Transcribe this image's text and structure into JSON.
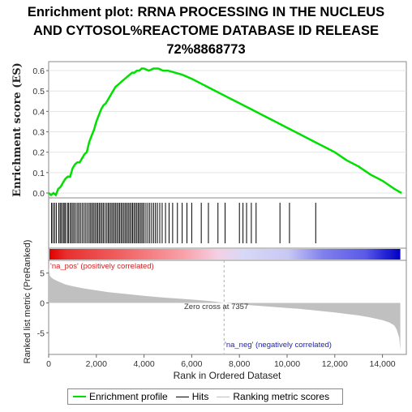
{
  "chart": {
    "title_lines": [
      "Enrichment plot: RRNA PROCESSING IN THE NUCLEUS",
      "AND CYTOSOL%REACTOME DATABASE ID RELEASE",
      "72%8868773"
    ],
    "legend": {
      "enrichment": "Enrichment profile",
      "hits": "Hits",
      "ranking": "Ranking metric scores"
    },
    "labels": {
      "pos": "'na_pos' (positively correlated)",
      "neg": "'na_neg' (negatively correlated)",
      "zero_cross": "Zero cross at 7357"
    }
  },
  "chart_data": {
    "type": "line",
    "title": "Enrichment plot: RRNA PROCESSING IN THE NUCLEUS AND CYTOSOL%REACTOME DATABASE ID RELEASE 72%8868773",
    "xlabel": "Rank in Ordered Dataset",
    "xlim": [
      0,
      15000
    ],
    "x_ticks": [
      0,
      2000,
      4000,
      6000,
      8000,
      10000,
      12000,
      14000
    ],
    "x_tick_labels": [
      "0",
      "2,000",
      "4,000",
      "6,000",
      "8,000",
      "10,000",
      "12,000",
      "14,000"
    ],
    "colors": {
      "enrichment": "#00e000",
      "hits": "#000000",
      "ranking": "#c0c0c0",
      "pos_label": "#d02020",
      "neg_label": "#2020c0"
    },
    "panels": {
      "enrichment": {
        "ylabel": "Enrichment score (ES)",
        "ylim": [
          -0.02,
          0.64
        ],
        "y_ticks": [
          0.0,
          0.1,
          0.2,
          0.3,
          0.4,
          0.5,
          0.6
        ],
        "y_tick_labels": [
          "0.0",
          "0.1",
          "0.2",
          "0.3",
          "0.4",
          "0.5",
          "0.6"
        ],
        "series": [
          {
            "name": "Enrichment profile",
            "x": [
              0,
              100,
              200,
              300,
              400,
              500,
              600,
              700,
              800,
              900,
              1000,
              1100,
              1200,
              1300,
              1400,
              1500,
              1600,
              1700,
              1800,
              1900,
              2000,
              2100,
              2200,
              2300,
              2400,
              2500,
              2600,
              2700,
              2800,
              2900,
              3000,
              3100,
              3200,
              3300,
              3400,
              3500,
              3600,
              3700,
              3800,
              3900,
              4000,
              4200,
              4400,
              4600,
              4800,
              5000,
              5300,
              5600,
              6000,
              6500,
              7000,
              7500,
              8000,
              8500,
              9000,
              9500,
              10000,
              10500,
              11000,
              11500,
              12000,
              12500,
              13000,
              13500,
              14000,
              14500,
              14800
            ],
            "y": [
              0.0,
              -0.01,
              0.0,
              -0.01,
              0.02,
              0.03,
              0.05,
              0.07,
              0.08,
              0.08,
              0.12,
              0.14,
              0.15,
              0.15,
              0.17,
              0.19,
              0.2,
              0.25,
              0.28,
              0.31,
              0.35,
              0.38,
              0.41,
              0.43,
              0.44,
              0.46,
              0.48,
              0.5,
              0.52,
              0.53,
              0.54,
              0.55,
              0.56,
              0.57,
              0.58,
              0.59,
              0.59,
              0.6,
              0.6,
              0.61,
              0.61,
              0.6,
              0.61,
              0.61,
              0.6,
              0.6,
              0.59,
              0.58,
              0.56,
              0.53,
              0.5,
              0.47,
              0.44,
              0.41,
              0.38,
              0.35,
              0.32,
              0.29,
              0.26,
              0.23,
              0.2,
              0.16,
              0.13,
              0.09,
              0.06,
              0.02,
              0.0
            ]
          }
        ]
      },
      "hits": {
        "name": "Hits",
        "positions": [
          120,
          180,
          250,
          320,
          420,
          480,
          530,
          600,
          650,
          700,
          780,
          830,
          900,
          960,
          1020,
          1080,
          1150,
          1220,
          1280,
          1350,
          1420,
          1490,
          1560,
          1630,
          1700,
          1760,
          1820,
          1880,
          1940,
          2000,
          2060,
          2120,
          2180,
          2240,
          2300,
          2370,
          2440,
          2500,
          2560,
          2620,
          2680,
          2740,
          2800,
          2860,
          2920,
          2980,
          3040,
          3100,
          3160,
          3220,
          3280,
          3340,
          3400,
          3460,
          3520,
          3580,
          3640,
          3700,
          3760,
          3820,
          3880,
          3940,
          4000,
          4080,
          4160,
          4240,
          4320,
          4400,
          4480,
          4560,
          4660,
          4760,
          4900,
          5050,
          5200,
          5400,
          5600,
          5800,
          6000,
          6400,
          6700,
          7100,
          7400,
          8000,
          8150,
          8300,
          8500,
          8700,
          9700,
          10100,
          11200
        ]
      },
      "ranking": {
        "ylabel": "Ranked list metric (PreRanked)",
        "ylim": [
          -8.5,
          7
        ],
        "y_ticks": [
          5,
          0,
          -5
        ],
        "y_tick_labels": [
          "5",
          "0",
          "-5"
        ],
        "zero_cross": 7357,
        "series": [
          {
            "name": "Ranking metric scores",
            "x": [
              0,
              50,
              100,
              200,
              400,
              700,
              1000,
              1500,
              2000,
              2500,
              3000,
              3500,
              4000,
              4500,
              5000,
              5500,
              6000,
              6500,
              7000,
              7357,
              8000,
              8500,
              9000,
              9500,
              10000,
              10500,
              11000,
              11500,
              12000,
              12500,
              13000,
              13500,
              14000,
              14300,
              14500,
              14600,
              14700,
              14750
            ],
            "y": [
              6.0,
              4.6,
              4.3,
              4.0,
              3.6,
              3.1,
              2.8,
              2.4,
              2.1,
              1.8,
              1.6,
              1.4,
              1.2,
              1.0,
              0.85,
              0.7,
              0.55,
              0.4,
              0.2,
              0.0,
              -0.2,
              -0.4,
              -0.55,
              -0.7,
              -0.85,
              -1.0,
              -1.2,
              -1.4,
              -1.6,
              -1.85,
              -2.1,
              -2.45,
              -2.9,
              -3.3,
              -3.8,
              -4.5,
              -5.8,
              -8.0
            ]
          }
        ]
      }
    }
  }
}
